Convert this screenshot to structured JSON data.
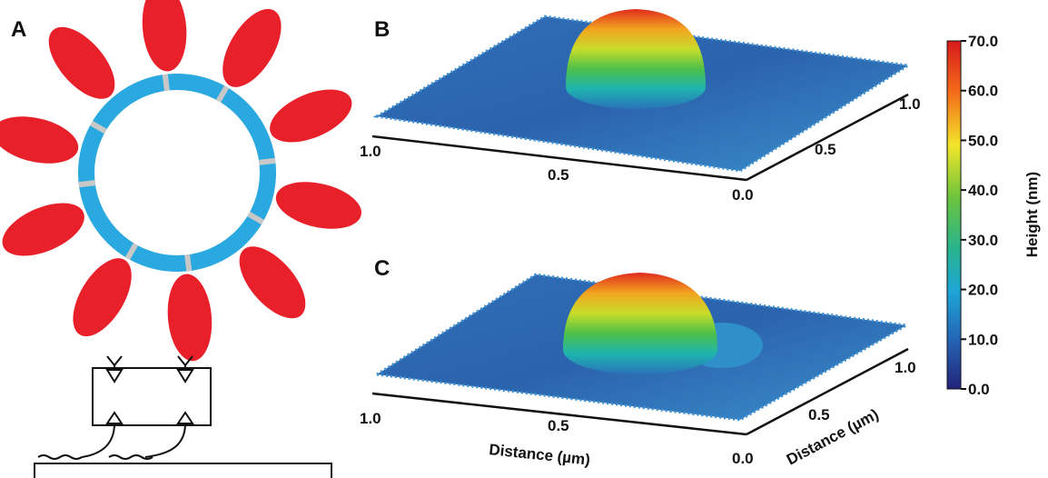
{
  "panels": {
    "a": {
      "label": "A"
    },
    "b": {
      "label": "B",
      "x_ticks": [
        "1.0",
        "0.5",
        "0.0"
      ],
      "y_ticks": [
        "0.5",
        "1.0"
      ]
    },
    "c": {
      "label": "C",
      "x_ticks": [
        "1.0",
        "0.5",
        "0.0"
      ],
      "y_ticks": [
        "0.5",
        "1.0"
      ],
      "x_axis_label": "Distance (µm)",
      "y_axis_label": "Distance (µm)"
    }
  },
  "colorbar": {
    "title": "Height (nm)",
    "ticks": [
      "70.0",
      "60.0",
      "50.0",
      "40.0",
      "30.0",
      "20.0",
      "10.0",
      "0.0"
    ]
  }
}
